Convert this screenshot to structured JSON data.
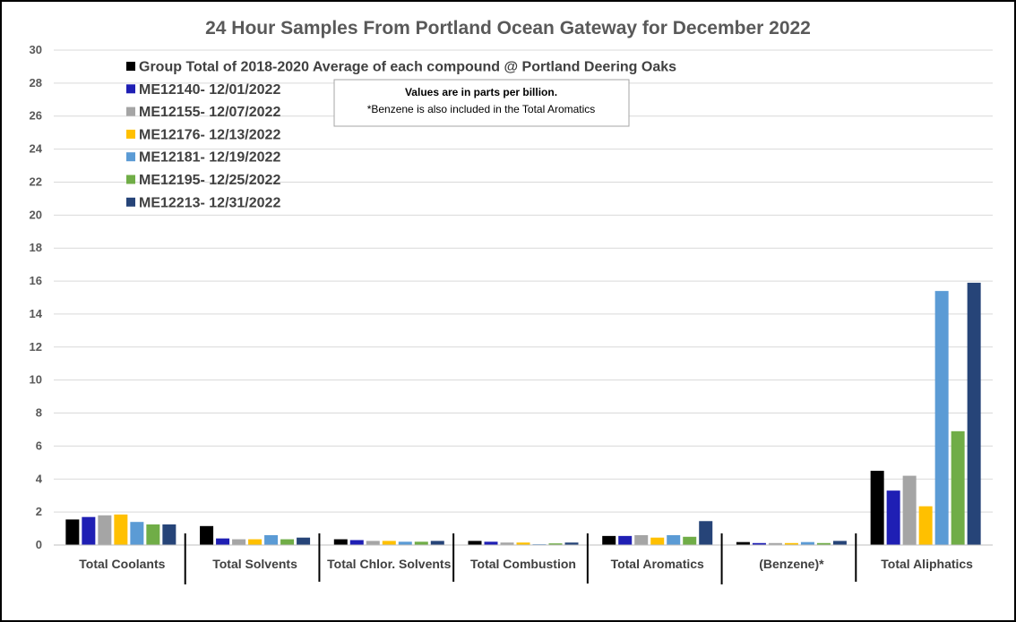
{
  "chart_data": {
    "type": "bar",
    "title": "24 Hour Samples From Portland Ocean Gateway for December 2022",
    "xlabel": "",
    "ylabel": "",
    "ylim": [
      0,
      30
    ],
    "yticks": [
      0,
      2,
      4,
      6,
      8,
      10,
      12,
      14,
      16,
      18,
      20,
      22,
      24,
      26,
      28,
      30
    ],
    "grid": true,
    "legend_position": "top-left",
    "categories": [
      "Total Coolants",
      "Total Solvents",
      "Total Chlor. Solvents",
      "Total Combustion",
      "Total Aromatics",
      "(Benzene)*",
      "Total Aliphatics"
    ],
    "series": [
      {
        "name": "Group Total of 2018-2020 Average of each compound @ Portland Deering Oaks",
        "color": "#000000",
        "values": [
          1.55,
          1.15,
          0.35,
          0.25,
          0.55,
          0.18,
          4.5
        ]
      },
      {
        "name": "ME12140- 12/01/2022",
        "color": "#1F1FB4",
        "values": [
          1.7,
          0.4,
          0.3,
          0.2,
          0.55,
          0.12,
          3.3
        ]
      },
      {
        "name": "ME12155- 12/07/2022",
        "color": "#A5A5A5",
        "values": [
          1.8,
          0.35,
          0.25,
          0.15,
          0.6,
          0.12,
          4.2
        ]
      },
      {
        "name": "ME12176- 12/13/2022",
        "color": "#FFC000",
        "values": [
          1.85,
          0.35,
          0.25,
          0.15,
          0.45,
          0.12,
          2.35
        ]
      },
      {
        "name": "ME12181- 12/19/2022",
        "color": "#5B9BD5",
        "values": [
          1.4,
          0.6,
          0.2,
          0.05,
          0.6,
          0.18,
          15.4
        ]
      },
      {
        "name": "ME12195- 12/25/2022",
        "color": "#70AD47",
        "values": [
          1.25,
          0.35,
          0.2,
          0.1,
          0.5,
          0.12,
          6.9
        ]
      },
      {
        "name": "ME12213- 12/31/2022",
        "color": "#264478",
        "values": [
          1.25,
          0.45,
          0.25,
          0.15,
          1.45,
          0.25,
          15.9
        ]
      }
    ],
    "annotation": {
      "line1": "Values are in parts per billion.",
      "line2": "*Benzene is also included in the Total Aromatics"
    }
  },
  "colors": {
    "gridline": "#D9D9D9",
    "axis": "#BFBFBF",
    "frame": "#000000"
  }
}
